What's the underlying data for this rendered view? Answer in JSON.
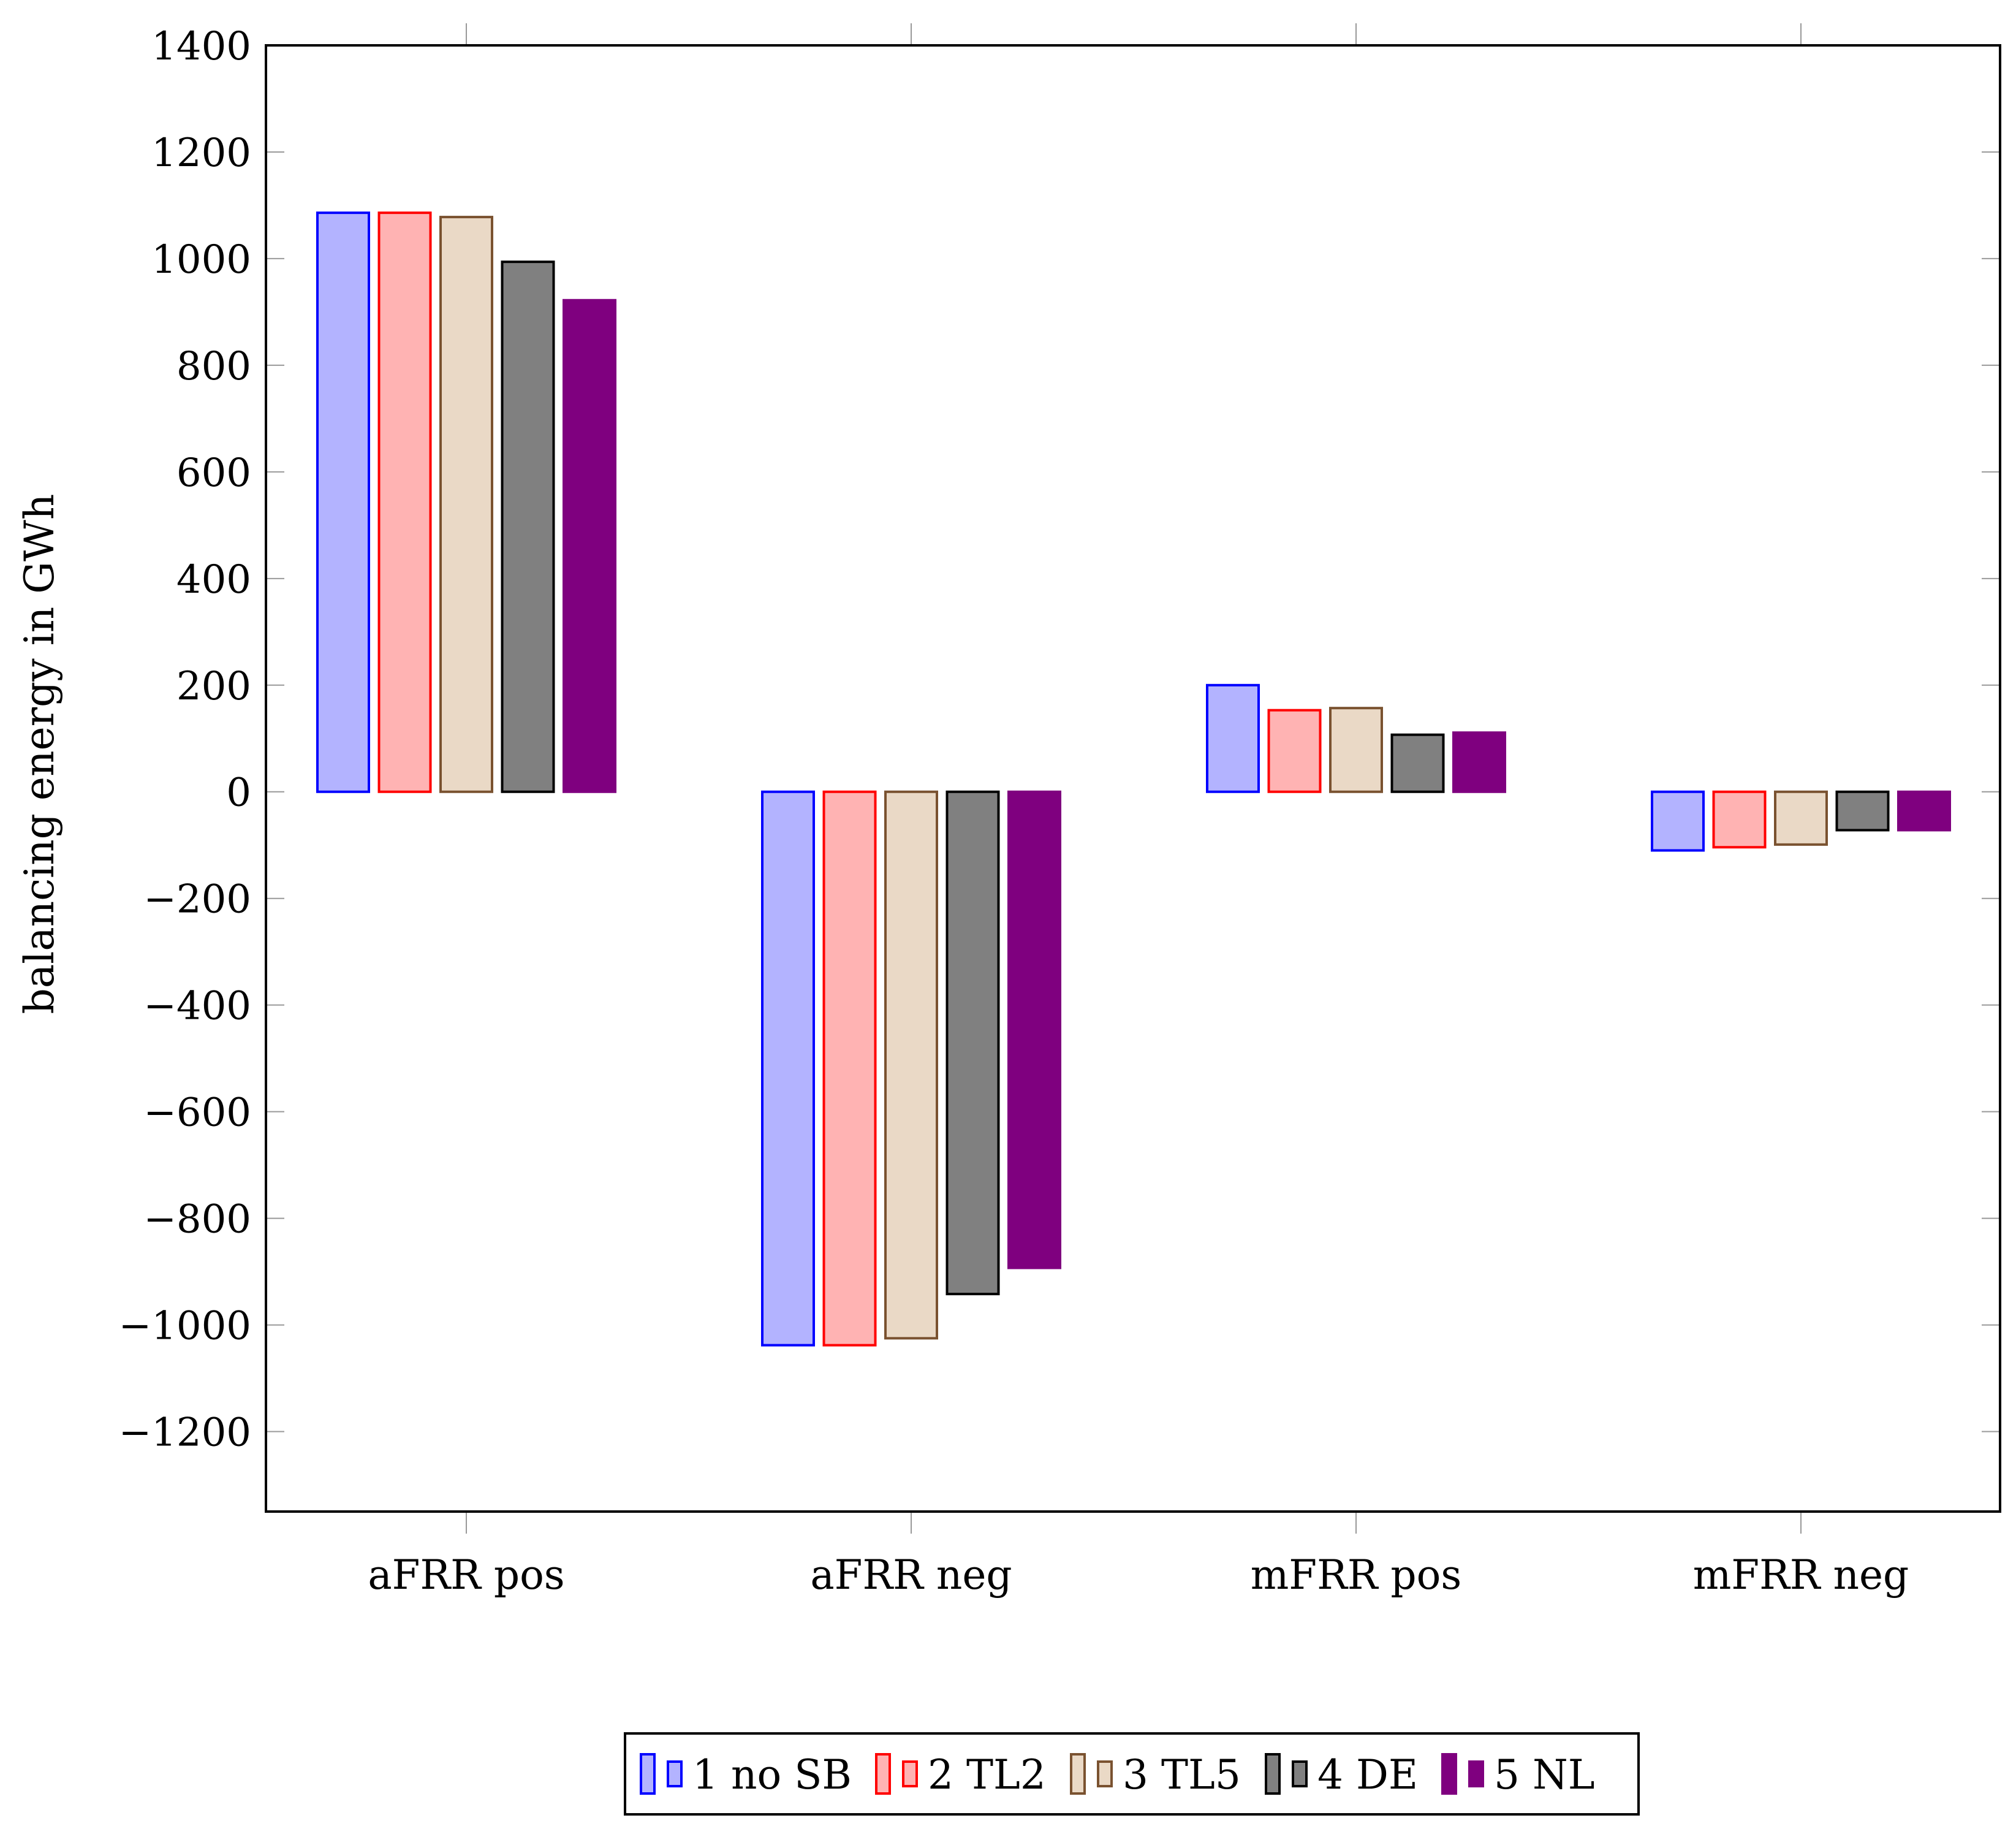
{
  "chart_data": {
    "type": "bar",
    "title": "",
    "xlabel": "",
    "ylabel": "balancing energy in GWh",
    "ylim": [
      -1350,
      1400
    ],
    "yticks": [
      1400,
      1200,
      1000,
      800,
      600,
      400,
      200,
      0,
      -200,
      -400,
      -600,
      -800,
      -1000,
      -1200
    ],
    "ytick_labels": [
      "1400",
      "1200",
      "1000",
      "800",
      "600",
      "400",
      "200",
      "0",
      "−200",
      "−400",
      "−600",
      "−800",
      "−1000",
      "−1200"
    ],
    "categories": [
      "aFRR pos",
      "aFRR neg",
      "mFRR pos",
      "mFRR neg"
    ],
    "legend_position": "bottom-center",
    "series": [
      {
        "name": "1 no SB",
        "fill": "#b3b3ff",
        "stroke": "#0000ff",
        "values": [
          1086,
          -1038,
          200,
          -110
        ]
      },
      {
        "name": "2 TL2",
        "fill": "#ffb3b3",
        "stroke": "#ff0000",
        "values": [
          1086,
          -1038,
          153,
          -104
        ]
      },
      {
        "name": "3 TL5",
        "fill": "#ead9c6",
        "stroke": "#7a5230",
        "values": [
          1078,
          -1025,
          157,
          -99
        ]
      },
      {
        "name": "4 DE",
        "fill": "#808080",
        "stroke": "#000000",
        "values": [
          994,
          -942,
          107,
          -72
        ]
      },
      {
        "name": "5 NL",
        "fill": "#7f007f",
        "stroke": "#7f007f",
        "values": [
          922,
          -893,
          111,
          -72
        ]
      }
    ]
  }
}
